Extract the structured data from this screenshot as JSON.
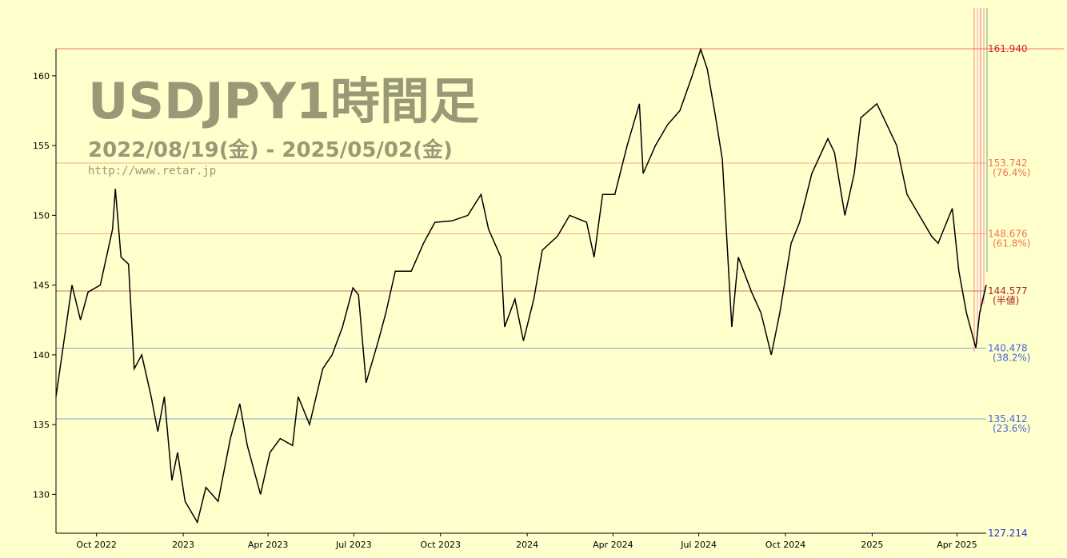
{
  "chart_data": {
    "type": "line",
    "title": "USDJPY1時間足",
    "subtitle": "2022/08/19(金) - 2025/05/02(金)",
    "url": "http://www.retar.jp",
    "x": [
      "2022-08-19",
      "2022-09-05",
      "2022-09-14",
      "2022-09-22",
      "2022-10-05",
      "2022-10-18",
      "2022-10-21",
      "2022-10-27",
      "2022-11-04",
      "2022-11-10",
      "2022-11-18",
      "2022-11-28",
      "2022-12-05",
      "2022-12-12",
      "2022-12-20",
      "2022-12-26",
      "2023-01-03",
      "2023-01-16",
      "2023-01-25",
      "2023-02-07",
      "2023-02-20",
      "2023-03-02",
      "2023-03-10",
      "2023-03-24",
      "2023-04-03",
      "2023-04-14",
      "2023-04-27",
      "2023-05-03",
      "2023-05-15",
      "2023-05-29",
      "2023-06-08",
      "2023-06-19",
      "2023-06-30",
      "2023-07-06",
      "2023-07-14",
      "2023-07-27",
      "2023-08-04",
      "2023-08-14",
      "2023-08-31",
      "2023-09-13",
      "2023-09-25",
      "2023-10-13",
      "2023-10-30",
      "2023-11-13",
      "2023-11-21",
      "2023-12-04",
      "2023-12-08",
      "2023-12-19",
      "2023-12-28",
      "2024-01-08",
      "2024-01-17",
      "2024-02-02",
      "2024-02-15",
      "2024-03-04",
      "2024-03-12",
      "2024-03-21",
      "2024-04-03",
      "2024-04-16",
      "2024-04-29",
      "2024-05-03",
      "2024-05-16",
      "2024-05-29",
      "2024-06-11",
      "2024-06-24",
      "2024-07-03",
      "2024-07-10",
      "2024-07-19",
      "2024-07-26",
      "2024-08-05",
      "2024-08-12",
      "2024-08-26",
      "2024-09-05",
      "2024-09-16",
      "2024-09-25",
      "2024-10-07",
      "2024-10-16",
      "2024-10-29",
      "2024-11-15",
      "2024-11-22",
      "2024-12-03",
      "2024-12-13",
      "2024-12-20",
      "2025-01-06",
      "2025-01-13",
      "2025-01-27",
      "2025-02-07",
      "2025-02-20",
      "2025-03-05",
      "2025-03-12",
      "2025-03-27",
      "2025-04-03",
      "2025-04-11",
      "2025-04-21",
      "2025-04-25",
      "2025-05-02"
    ],
    "series": [
      {
        "name": "USDJPY",
        "color": "#000000",
        "values": [
          137,
          145,
          142.5,
          144.5,
          145,
          149,
          151.9,
          147,
          146.5,
          139,
          140,
          137,
          134.5,
          137,
          131,
          133,
          129.5,
          128,
          130.5,
          129.5,
          134,
          136.5,
          133.5,
          130,
          133,
          134,
          133.5,
          137,
          135,
          139,
          140,
          142,
          144.8,
          144.3,
          138,
          141,
          143,
          146,
          146,
          148,
          149.5,
          149.6,
          150,
          151.5,
          149,
          147,
          142,
          144,
          141,
          144,
          147.5,
          148.5,
          150,
          149.5,
          147,
          151.5,
          151.5,
          155,
          158,
          153,
          155,
          156.5,
          157.5,
          160,
          161.9,
          160.5,
          157,
          154,
          142,
          147,
          144.5,
          143,
          140,
          143,
          148,
          149.5,
          153,
          155.5,
          154.5,
          150,
          153,
          157,
          158,
          157,
          155,
          151.5,
          150,
          148.5,
          148,
          150.5,
          146,
          143,
          140.5,
          143,
          145
        ]
      }
    ],
    "xlim": [
      "2022-08-19",
      "2025-05-02"
    ],
    "xticks": [
      {
        "value": "2022-10-01",
        "label": "Oct 2022"
      },
      {
        "value": "2023-01-01",
        "label": "2023"
      },
      {
        "value": "2023-04-01",
        "label": "Apr 2023"
      },
      {
        "value": "2023-07-01",
        "label": "Jul 2023"
      },
      {
        "value": "2023-10-01",
        "label": "Oct 2023"
      },
      {
        "value": "2024-01-01",
        "label": "2024"
      },
      {
        "value": "2024-04-01",
        "label": "Apr 2024"
      },
      {
        "value": "2024-07-01",
        "label": "Jul 2024"
      },
      {
        "value": "2024-10-01",
        "label": "Oct 2024"
      },
      {
        "value": "2025-01-01",
        "label": "2025"
      },
      {
        "value": "2025-04-01",
        "label": "Apr 2025"
      }
    ],
    "ylim": [
      127.214,
      161.94
    ],
    "yticks": [
      130,
      135,
      140,
      145,
      150,
      155,
      160
    ],
    "levels": [
      {
        "value": 161.94,
        "label": "161.940",
        "color": "#dd2222"
      },
      {
        "value": 153.742,
        "label": "153.742",
        "ratio": "(76.4%)",
        "color": "#ee7755"
      },
      {
        "value": 148.676,
        "label": "148.676",
        "ratio": "(61.8%)",
        "color": "#ee7755"
      },
      {
        "value": 144.577,
        "label": "144.577",
        "ratio": "(半値)",
        "color": "#aa2222"
      },
      {
        "value": 140.478,
        "label": "140.478",
        "ratio": "(38.2%)",
        "color": "#4466dd"
      },
      {
        "value": 135.412,
        "label": "135.412",
        "ratio": "(23.6%)",
        "color": "#4466dd"
      },
      {
        "value": 127.214,
        "label": "127.214",
        "color": "#2233cc"
      }
    ]
  }
}
